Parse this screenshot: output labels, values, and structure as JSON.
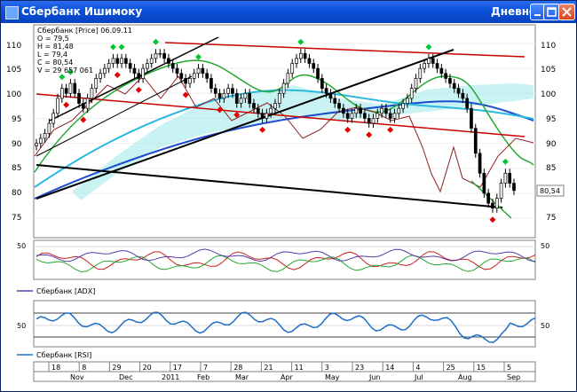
{
  "window": {
    "title": "Сбербанк Ишимоку",
    "mode": "Дневной",
    "buttons": [
      "minimize",
      "maximize",
      "close"
    ]
  },
  "legend": {
    "lines": [
      "Сбербанк [Price] 06.09.11",
      "O = 79,5",
      "H = 81,48",
      "L = 79,4",
      "C = 80,54",
      "V = 29 657 061"
    ]
  },
  "colors": {
    "up_marker": "#00c832",
    "down_marker": "#e00000",
    "resistance": "#c80000",
    "support": "#000000",
    "ma_long": "#1e4ccf",
    "ma_mid": "#2ab8e0",
    "ma_short": "#22a832",
    "lagging": "#8b2020",
    "cloud": "#9ce8e8"
  },
  "price_panel": {
    "y_ticks": [
      "110",
      "105",
      "100",
      "95",
      "90",
      "85",
      "80",
      "75"
    ],
    "last_price": "80,54"
  },
  "adx_panel": {
    "label": "Сбербанк [ADX]",
    "y_tick": "50"
  },
  "rsi_panel": {
    "label": "Сбербанк [RSI]",
    "y_tick": "50"
  },
  "x_axis": {
    "days": [
      "18",
      "8",
      "29",
      "20",
      "17",
      "7",
      "28",
      "21",
      "11",
      "3",
      "23",
      "14",
      "4",
      "25",
      "15",
      "5"
    ],
    "months": [
      "Nov",
      "Dec",
      "2011",
      "Feb",
      "Mar",
      "Apr",
      "May",
      "Jun",
      "Jul",
      "Aug",
      "Sep"
    ]
  },
  "chart_data": {
    "type": "line",
    "title": "Сбербанк [Price] 06.09.11",
    "ylim": [
      73,
      113
    ],
    "ticks": [
      110,
      105,
      100,
      95,
      90,
      85,
      80,
      75
    ],
    "close": [
      90,
      91,
      92,
      94,
      96,
      99,
      101,
      100,
      102,
      100,
      98,
      97,
      99,
      101,
      103,
      104,
      105,
      106,
      107,
      106,
      107,
      106,
      105,
      104,
      103,
      105,
      106,
      107,
      108,
      108,
      107,
      106,
      105,
      104,
      103,
      102,
      103,
      104,
      105,
      104,
      103,
      101,
      100,
      99,
      100,
      101,
      100,
      98,
      99,
      100,
      98,
      97,
      96,
      95,
      96,
      97,
      98,
      100,
      102,
      104,
      106,
      107,
      108,
      107,
      106,
      105,
      103,
      101,
      100,
      99,
      98,
      97,
      96,
      95,
      96,
      97,
      96,
      95,
      94,
      95,
      96,
      97,
      96,
      95,
      96,
      97,
      98,
      99,
      101,
      103,
      105,
      106,
      107,
      106,
      105,
      104,
      103,
      102,
      101,
      100,
      99,
      97,
      93,
      88,
      84,
      80,
      78,
      77,
      79,
      82,
      84,
      82,
      80.54
    ],
    "ohlc_last": {
      "open": 79.5,
      "high": 81.48,
      "low": 79.4,
      "close": 80.54
    }
  }
}
